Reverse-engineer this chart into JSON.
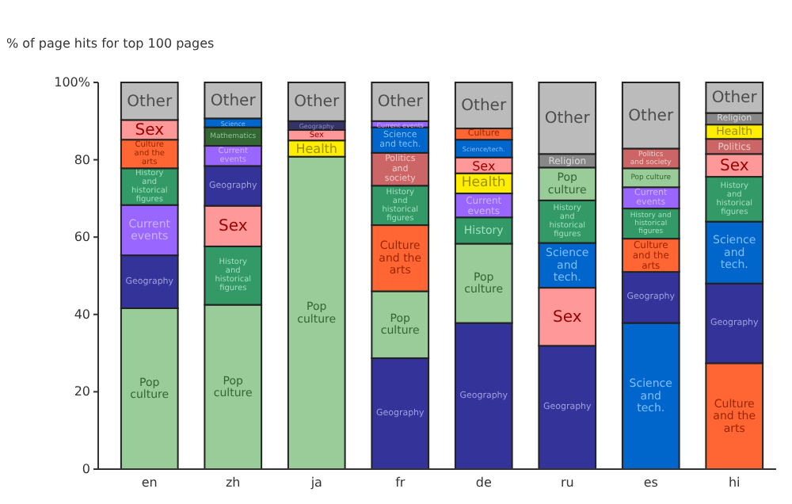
{
  "chart_data": {
    "type": "bar",
    "stacked": true,
    "ylabel": "% of page hits for top 100 pages",
    "categories": [
      "en",
      "zh",
      "ja",
      "fr",
      "de",
      "ru",
      "es",
      "hi"
    ],
    "ylim": [
      0,
      100
    ],
    "yticks": [
      0,
      20,
      40,
      60,
      80,
      {
        "value": 100,
        "label": "100%"
      }
    ],
    "grid": false,
    "series": [
      {
        "values": [
          41.6,
          42.5,
          80.8,
          28.7,
          37.8,
          31.9,
          37.8,
          27.4
        ],
        "colors": [
          "#99cc99",
          "#99cc99",
          "#99cc99",
          "#333399",
          "#333399",
          "#333399",
          "#0066cc",
          "#ff6633"
        ],
        "value_labels": [
          "Pop culture",
          "Pop culture",
          "Pop culture",
          "Geography",
          "Geography",
          "Geography",
          "Science and tech.",
          "Culture and the arts"
        ]
      },
      {
        "values": [
          13.7,
          15.1,
          4.2,
          17.3,
          20.5,
          15,
          13.2,
          20.6
        ],
        "colors": [
          "#333399",
          "#339966",
          "#ffee00",
          "#99cc99",
          "#99cc99",
          "#ff9999",
          "#333399",
          "#333399"
        ],
        "value_labels": [
          "Geography",
          "History and historical figures",
          "Health",
          "Pop culture",
          "Pop culture",
          "Sex",
          "Geography",
          "Geography"
        ]
      },
      {
        "values": [
          13,
          10.5,
          2.7,
          17.1,
          6.8,
          11.6,
          8.6,
          16
        ],
        "colors": [
          "#9966ff",
          "#ff9999",
          "#ff9999",
          "#ff6633",
          "#339966",
          "#0066cc",
          "#ff6633",
          "#0066cc"
        ],
        "value_labels": [
          "Current events",
          "Sex",
          "Sex",
          "Culture and the arts",
          "History",
          "Science and tech.",
          "Culture and the arts",
          "Science and tech."
        ]
      },
      {
        "values": [
          9.5,
          10.3,
          2.3,
          10.2,
          6.2,
          11,
          7.8,
          11.6
        ],
        "colors": [
          "#339966",
          "#333399",
          "#333366",
          "#339966",
          "#9966ff",
          "#339966",
          "#339966",
          "#339966"
        ],
        "value_labels": [
          "History and historical figures",
          "Geography",
          "Geography",
          "History and historical figures",
          "Current events",
          "History and historical figures",
          "History and historical figures",
          "History and historical figures"
        ]
      },
      {
        "values": [
          7.4,
          5.2,
          10,
          8.5,
          5.2,
          8.5,
          5.5,
          5.9
        ],
        "colors": [
          "#ff6633",
          "#9966ff",
          "#bbbbbb",
          "#cc6666",
          "#ffee00",
          "#99cc99",
          "#9966ff",
          "#ff9999"
        ],
        "value_labels": [
          "Culture and the arts",
          "Current events",
          "Other",
          "Politics and society",
          "Health",
          "Pop culture",
          "Current events",
          "Sex"
        ]
      },
      {
        "values": [
          5.1,
          4.8,
          null,
          6.6,
          4.1,
          3.5,
          4.9,
          3.9
        ],
        "colors": [
          "#ff9999",
          "#336633",
          null,
          "#0066cc",
          "#ff9999",
          "#888888",
          "#99cc99",
          "#cc6666"
        ],
        "value_labels": [
          "Sex",
          "Mathematics",
          null,
          "Science and tech.",
          "Sex",
          "Religion",
          "Pop culture",
          "Politics"
        ]
      },
      {
        "values": [
          9.7,
          2.3,
          null,
          1.6,
          4.6,
          18.5,
          5.1,
          3.7
        ],
        "colors": [
          "#bbbbbb",
          "#0066cc",
          null,
          "#9966ff",
          "#0066cc",
          "#bbbbbb",
          "#cc6666",
          "#ffee00"
        ],
        "value_labels": [
          "Other",
          "Science",
          null,
          "Current events",
          "Science/tech.",
          "Other",
          "Politics and society",
          "Health"
        ]
      },
      {
        "values": [
          null,
          9.3,
          null,
          10,
          2.9,
          null,
          17.1,
          3
        ],
        "colors": [
          null,
          "#bbbbbb",
          null,
          "#bbbbbb",
          "#ff6633",
          null,
          "#bbbbbb",
          "#888888"
        ],
        "value_labels": [
          null,
          "Other",
          null,
          "Other",
          "Culture",
          null,
          "Other",
          "Religion"
        ]
      },
      {
        "values": [
          null,
          null,
          null,
          null,
          11.9,
          null,
          null,
          7.9
        ],
        "colors": [
          null,
          null,
          null,
          null,
          "#bbbbbb",
          null,
          null,
          "#bbbbbb"
        ],
        "value_labels": [
          null,
          null,
          null,
          null,
          "Other",
          null,
          null,
          "Other"
        ]
      }
    ]
  }
}
